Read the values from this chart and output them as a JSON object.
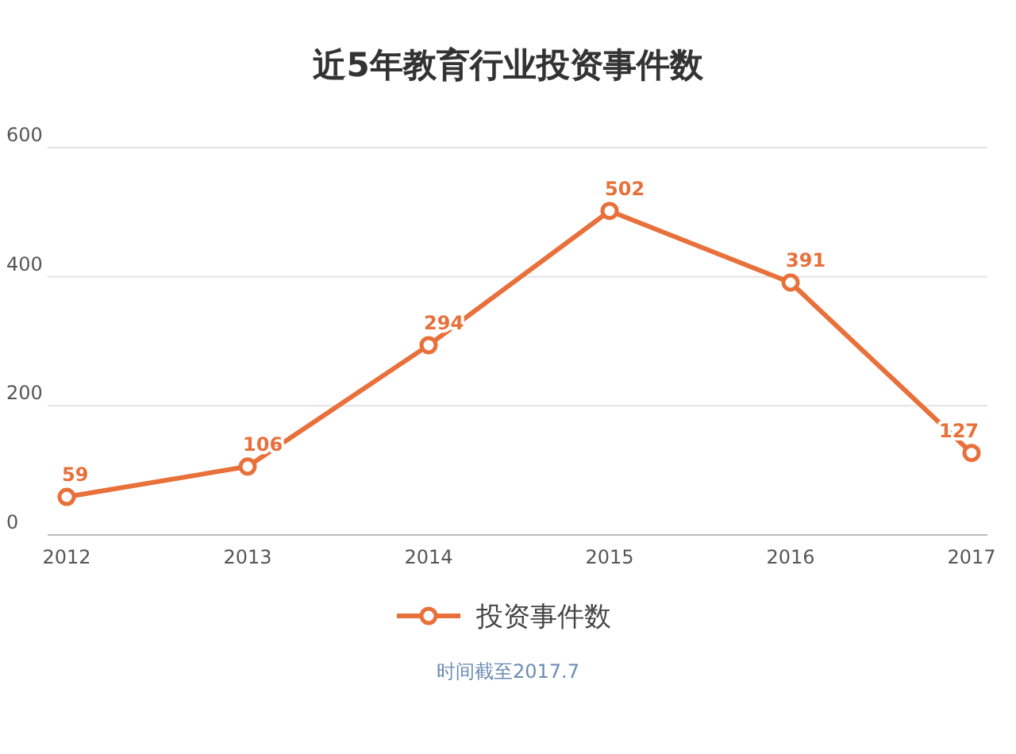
{
  "chart_data": {
    "type": "line",
    "title": "近5年教育行业投资事件数",
    "categories": [
      "2012",
      "2013",
      "2014",
      "2015",
      "2016",
      "2017"
    ],
    "series": [
      {
        "name": "投资事件数",
        "color": "#e8703a",
        "values": [
          59,
          106,
          294,
          502,
          391,
          127
        ]
      }
    ],
    "ylim": [
      0,
      600
    ],
    "yticks": [
      0,
      200,
      400,
      600
    ],
    "grid": "y",
    "legend": "bottom",
    "marker": "circle",
    "data_labels": true,
    "annotations": [
      "时间截至2017.7"
    ]
  }
}
